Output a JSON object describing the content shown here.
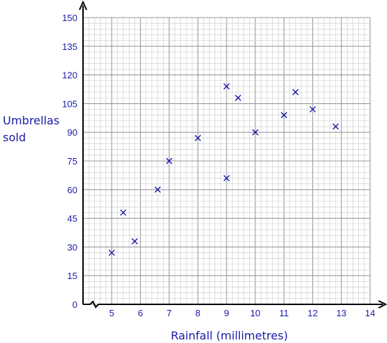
{
  "chart_data": {
    "type": "scatter",
    "title": "",
    "xlabel": "Rainfall (millimetres)",
    "ylabel_lines": [
      "Umbrellas",
      "sold"
    ],
    "xlim": [
      4,
      14
    ],
    "ylim": [
      0,
      150
    ],
    "x_ticks": [
      5,
      6,
      7,
      8,
      9,
      10,
      11,
      12,
      13,
      14
    ],
    "y_ticks": [
      0,
      15,
      30,
      45,
      60,
      75,
      90,
      105,
      120,
      135,
      150
    ],
    "x_axis_break": true,
    "grid": true,
    "marker": "x",
    "colors": {
      "marker": "#1a1aa6",
      "text": "#1a1aa6",
      "grid_minor": "#c8c8c8",
      "grid_major": "#9a9a9a",
      "axis": "#000000"
    },
    "points": [
      {
        "x": 5.0,
        "y": 27
      },
      {
        "x": 5.4,
        "y": 48
      },
      {
        "x": 5.8,
        "y": 33
      },
      {
        "x": 6.6,
        "y": 60
      },
      {
        "x": 7.0,
        "y": 75
      },
      {
        "x": 8.0,
        "y": 87
      },
      {
        "x": 9.0,
        "y": 114
      },
      {
        "x": 9.4,
        "y": 108
      },
      {
        "x": 9.0,
        "y": 66
      },
      {
        "x": 10.0,
        "y": 90
      },
      {
        "x": 11.0,
        "y": 99
      },
      {
        "x": 11.4,
        "y": 111
      },
      {
        "x": 12.0,
        "y": 102
      },
      {
        "x": 12.8,
        "y": 93
      }
    ]
  }
}
